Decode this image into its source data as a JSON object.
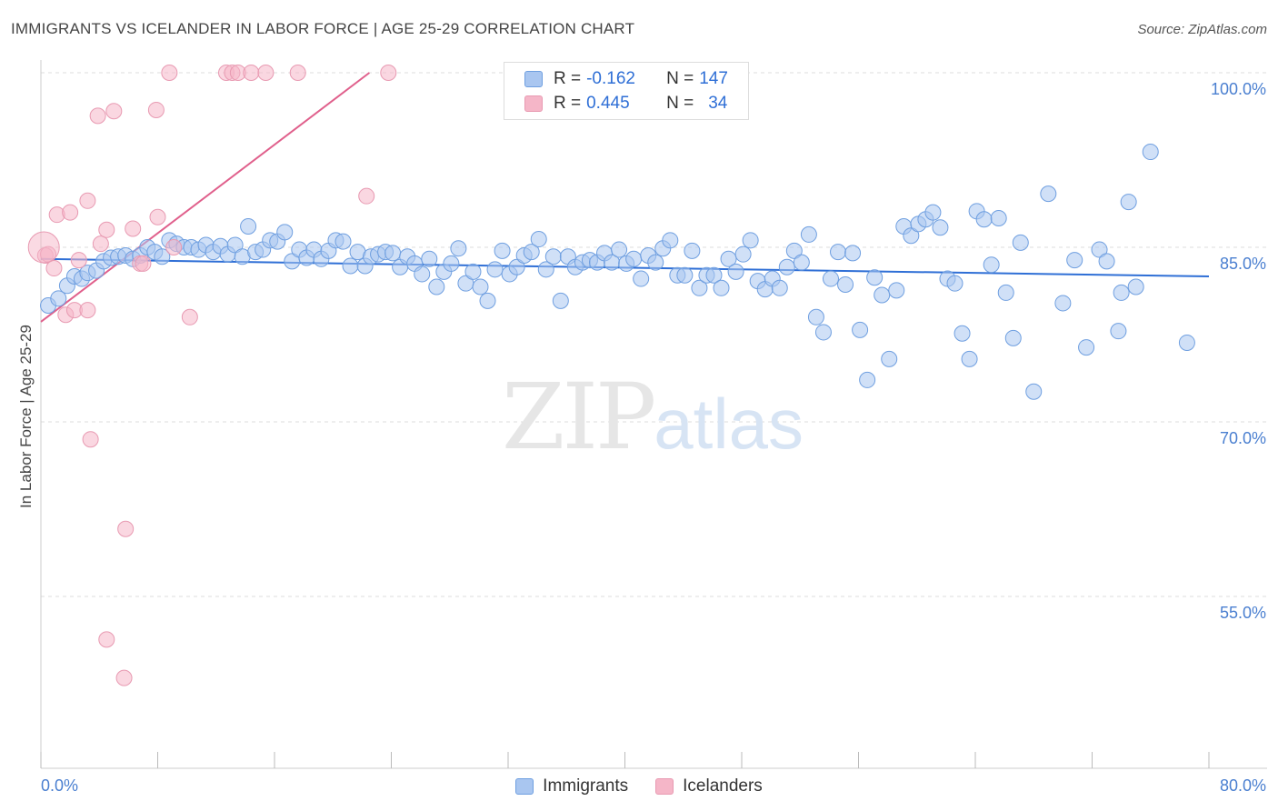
{
  "title": "IMMIGRANTS VS ICELANDER IN LABOR FORCE | AGE 25-29 CORRELATION CHART",
  "source": "Source: ZipAtlas.com",
  "watermark": {
    "zip": "ZIP",
    "atlas": "atlas"
  },
  "legend": {
    "r_label": "R =",
    "n_label": "N =",
    "rows": [
      {
        "r": "-0.162",
        "n": "147",
        "color": "#a9c6f0"
      },
      {
        "r": "0.445",
        "n": "34",
        "color": "#f5b6c8"
      }
    ]
  },
  "bottom_legend": [
    {
      "label": "Immigrants",
      "color": "#a9c6f0"
    },
    {
      "label": "Icelanders",
      "color": "#f5b6c8"
    }
  ],
  "chart_data": {
    "type": "scatter",
    "title": "IMMIGRANTS VS ICELANDER IN LABOR FORCE | AGE 25-29 CORRELATION CHART",
    "xlabel": "",
    "ylabel": "In Labor Force | Age 25-29",
    "xlim": [
      0,
      80
    ],
    "ylim": [
      40,
      101.5
    ],
    "x_tick_labels": [
      "0.0%",
      "80.0%"
    ],
    "y_ticks": [
      55,
      70,
      85,
      100
    ],
    "y_tick_labels": [
      "55.0%",
      "70.0%",
      "85.0%",
      "100.0%"
    ],
    "grid": true,
    "legend_position": "top-center",
    "series": [
      {
        "name": "Immigrants",
        "color": "#a9c6f0",
        "edge": "#6f9fe0",
        "trend": {
          "color": "#2f6fd6",
          "x": [
            0,
            80
          ],
          "y": [
            84.0,
            82.5
          ]
        },
        "points": [
          [
            0.5,
            80.0
          ],
          [
            1.2,
            80.6
          ],
          [
            1.8,
            81.7
          ],
          [
            2.3,
            82.5
          ],
          [
            2.8,
            82.3
          ],
          [
            3.2,
            82.8
          ],
          [
            3.8,
            83.0
          ],
          [
            4.3,
            83.8
          ],
          [
            4.8,
            84.1
          ],
          [
            5.3,
            84.2
          ],
          [
            5.8,
            84.3
          ],
          [
            6.3,
            84.0
          ],
          [
            6.8,
            84.3
          ],
          [
            7.3,
            85.0
          ],
          [
            7.8,
            84.6
          ],
          [
            8.3,
            84.2
          ],
          [
            8.8,
            85.6
          ],
          [
            9.3,
            85.3
          ],
          [
            9.8,
            85.0
          ],
          [
            10.3,
            85.0
          ],
          [
            10.8,
            84.8
          ],
          [
            11.3,
            85.2
          ],
          [
            11.8,
            84.6
          ],
          [
            12.3,
            85.1
          ],
          [
            12.8,
            84.4
          ],
          [
            13.3,
            85.2
          ],
          [
            13.8,
            84.2
          ],
          [
            14.2,
            86.8
          ],
          [
            14.7,
            84.6
          ],
          [
            15.2,
            84.8
          ],
          [
            15.7,
            85.6
          ],
          [
            16.2,
            85.5
          ],
          [
            16.7,
            86.3
          ],
          [
            17.2,
            83.8
          ],
          [
            17.7,
            84.8
          ],
          [
            18.2,
            84.1
          ],
          [
            18.7,
            84.8
          ],
          [
            19.2,
            84.0
          ],
          [
            19.7,
            84.7
          ],
          [
            20.2,
            85.6
          ],
          [
            20.7,
            85.5
          ],
          [
            21.2,
            83.4
          ],
          [
            21.7,
            84.6
          ],
          [
            22.2,
            83.4
          ],
          [
            22.6,
            84.2
          ],
          [
            23.1,
            84.4
          ],
          [
            23.6,
            84.6
          ],
          [
            24.1,
            84.5
          ],
          [
            24.6,
            83.3
          ],
          [
            25.1,
            84.2
          ],
          [
            25.6,
            83.6
          ],
          [
            26.1,
            82.7
          ],
          [
            26.6,
            84.0
          ],
          [
            27.1,
            81.6
          ],
          [
            27.6,
            82.9
          ],
          [
            28.1,
            83.6
          ],
          [
            28.6,
            84.9
          ],
          [
            29.1,
            81.9
          ],
          [
            29.6,
            82.9
          ],
          [
            30.1,
            81.6
          ],
          [
            30.6,
            80.4
          ],
          [
            31.1,
            83.1
          ],
          [
            31.6,
            84.7
          ],
          [
            32.1,
            82.7
          ],
          [
            32.6,
            83.3
          ],
          [
            33.1,
            84.3
          ],
          [
            33.6,
            84.6
          ],
          [
            34.1,
            85.7
          ],
          [
            34.6,
            83.1
          ],
          [
            35.1,
            84.2
          ],
          [
            35.6,
            80.4
          ],
          [
            36.1,
            84.2
          ],
          [
            36.6,
            83.3
          ],
          [
            37.1,
            83.7
          ],
          [
            37.6,
            83.9
          ],
          [
            38.1,
            83.7
          ],
          [
            38.6,
            84.5
          ],
          [
            39.1,
            83.7
          ],
          [
            39.6,
            84.8
          ],
          [
            40.1,
            83.6
          ],
          [
            40.6,
            84.0
          ],
          [
            41.1,
            82.3
          ],
          [
            41.6,
            84.3
          ],
          [
            42.1,
            83.7
          ],
          [
            42.6,
            84.9
          ],
          [
            43.1,
            85.6
          ],
          [
            43.6,
            82.6
          ],
          [
            44.1,
            82.6
          ],
          [
            44.6,
            84.7
          ],
          [
            45.1,
            81.5
          ],
          [
            45.6,
            82.6
          ],
          [
            46.1,
            82.6
          ],
          [
            46.6,
            81.5
          ],
          [
            47.1,
            84.0
          ],
          [
            47.6,
            82.9
          ],
          [
            48.1,
            84.4
          ],
          [
            48.6,
            85.6
          ],
          [
            49.1,
            82.1
          ],
          [
            49.6,
            81.4
          ],
          [
            50.1,
            82.3
          ],
          [
            50.6,
            81.5
          ],
          [
            51.1,
            83.3
          ],
          [
            51.6,
            84.7
          ],
          [
            52.1,
            83.7
          ],
          [
            52.6,
            86.1
          ],
          [
            53.1,
            79.0
          ],
          [
            53.6,
            77.7
          ],
          [
            54.1,
            82.3
          ],
          [
            54.6,
            84.6
          ],
          [
            55.1,
            81.8
          ],
          [
            55.6,
            84.5
          ],
          [
            56.1,
            77.9
          ],
          [
            56.6,
            73.6
          ],
          [
            57.1,
            82.4
          ],
          [
            57.6,
            80.9
          ],
          [
            58.1,
            75.4
          ],
          [
            58.6,
            81.3
          ],
          [
            59.1,
            86.8
          ],
          [
            59.6,
            86.0
          ],
          [
            60.1,
            87.0
          ],
          [
            60.6,
            87.4
          ],
          [
            61.1,
            88.0
          ],
          [
            61.6,
            86.7
          ],
          [
            62.1,
            82.3
          ],
          [
            62.6,
            81.9
          ],
          [
            63.1,
            77.6
          ],
          [
            63.6,
            75.4
          ],
          [
            64.1,
            88.1
          ],
          [
            64.6,
            87.4
          ],
          [
            65.1,
            83.5
          ],
          [
            65.6,
            87.5
          ],
          [
            66.1,
            81.1
          ],
          [
            66.6,
            77.2
          ],
          [
            67.1,
            85.4
          ],
          [
            68.0,
            72.6
          ],
          [
            69.0,
            89.6
          ],
          [
            70.0,
            80.2
          ],
          [
            70.8,
            83.9
          ],
          [
            71.6,
            76.4
          ],
          [
            72.5,
            84.8
          ],
          [
            73.0,
            83.8
          ],
          [
            73.8,
            77.8
          ],
          [
            74.5,
            88.9
          ],
          [
            74.0,
            81.1
          ],
          [
            75.0,
            81.6
          ],
          [
            76.0,
            93.2
          ],
          [
            78.5,
            76.8
          ]
        ]
      },
      {
        "name": "Icelanders",
        "color": "#f5b6c8",
        "edge": "#e89ab2",
        "trend": {
          "color": "#e0608c",
          "x": [
            0,
            22.5
          ],
          "y": [
            78.6,
            100.0
          ]
        },
        "points": [
          [
            0.3,
            84.3
          ],
          [
            0.5,
            84.4
          ],
          [
            0.9,
            83.2
          ],
          [
            1.1,
            87.8
          ],
          [
            1.7,
            79.2
          ],
          [
            2.0,
            88.0
          ],
          [
            2.3,
            79.6
          ],
          [
            2.6,
            83.9
          ],
          [
            3.2,
            79.6
          ],
          [
            3.2,
            89.0
          ],
          [
            3.4,
            68.5
          ],
          [
            3.9,
            96.3
          ],
          [
            4.1,
            85.3
          ],
          [
            4.5,
            51.3
          ],
          [
            4.5,
            86.5
          ],
          [
            5.0,
            96.7
          ],
          [
            5.7,
            48.0
          ],
          [
            5.8,
            60.8
          ],
          [
            6.3,
            86.6
          ],
          [
            6.8,
            83.6
          ],
          [
            7.0,
            83.6
          ],
          [
            7.9,
            96.8
          ],
          [
            8.0,
            87.6
          ],
          [
            8.8,
            100.0
          ],
          [
            9.1,
            85.0
          ],
          [
            10.2,
            79.0
          ],
          [
            12.7,
            100.0
          ],
          [
            13.1,
            100.0
          ],
          [
            13.5,
            100.0
          ],
          [
            14.4,
            100.0
          ],
          [
            15.4,
            100.0
          ],
          [
            17.6,
            100.0
          ],
          [
            22.3,
            89.4
          ],
          [
            23.8,
            100.0
          ]
        ]
      }
    ]
  }
}
